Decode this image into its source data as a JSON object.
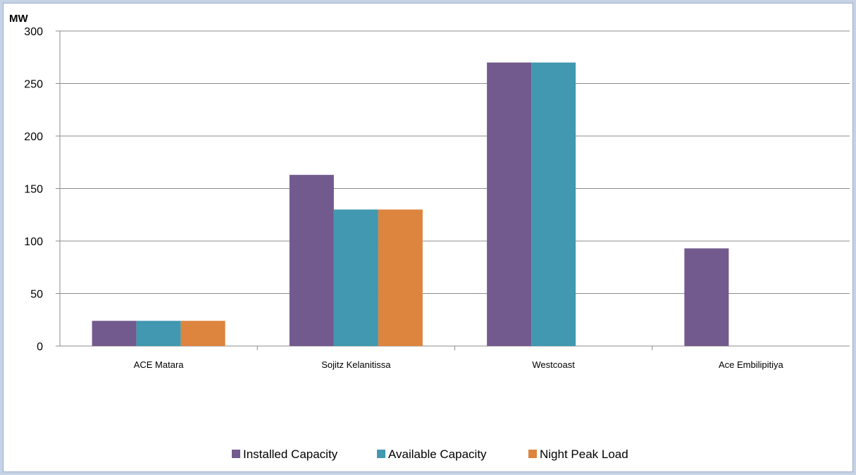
{
  "chart_data": {
    "type": "bar",
    "ylabel": "MW",
    "ylim": [
      0,
      300
    ],
    "yticks": [
      0,
      50,
      100,
      150,
      200,
      250,
      300
    ],
    "grid": true,
    "legend_position": "bottom",
    "categories": [
      "ACE Matara",
      "Sojitz Kelanitissa",
      "Westcoast",
      "Ace Embilipitiya"
    ],
    "series": [
      {
        "name": "Installed Capacity",
        "color": "#725a8e",
        "values": [
          24,
          163,
          270,
          93
        ]
      },
      {
        "name": "Available Capacity",
        "color": "#4198b0",
        "values": [
          24,
          130,
          270,
          0
        ]
      },
      {
        "name": "Night Peak Load",
        "color": "#dd843e",
        "values": [
          24,
          130,
          0,
          0
        ]
      }
    ]
  }
}
